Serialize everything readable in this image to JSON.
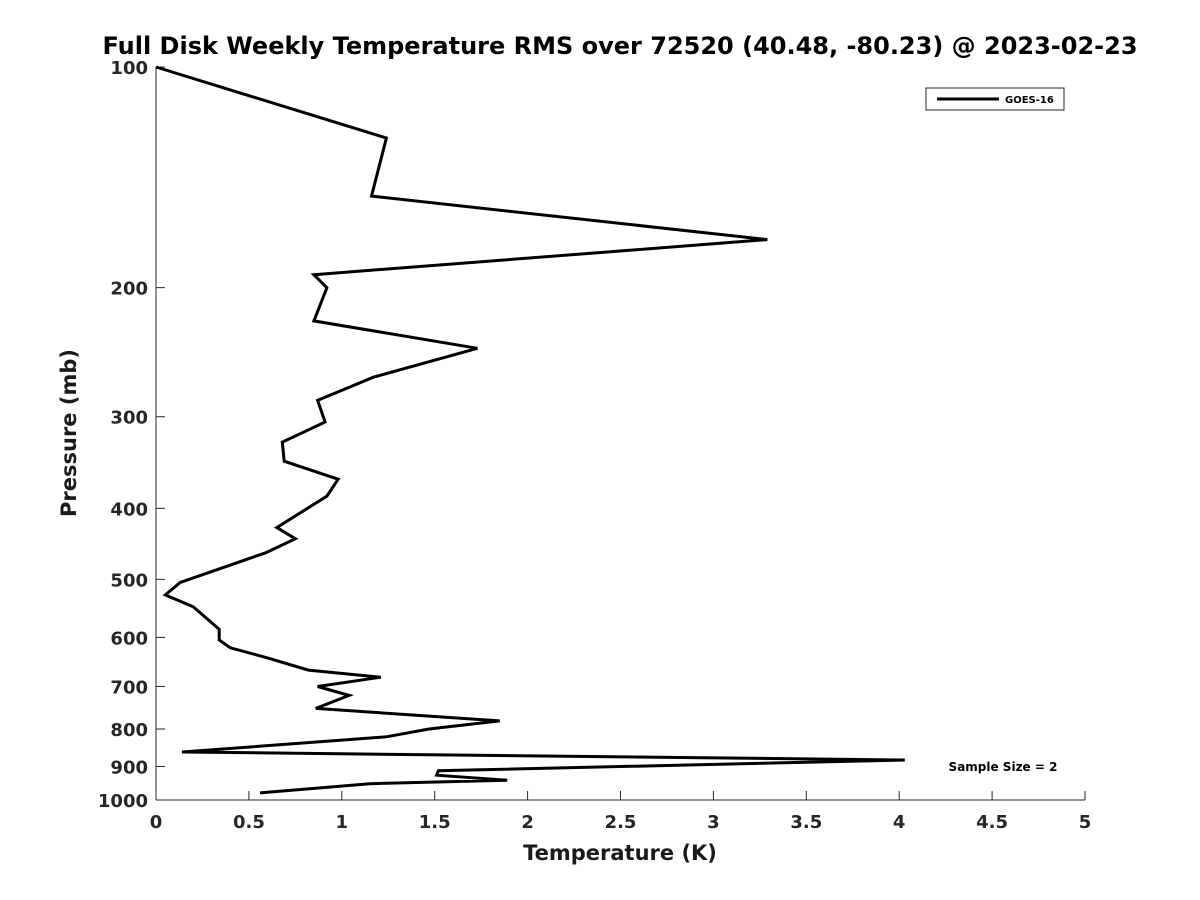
{
  "chart_data": {
    "type": "line",
    "title": "Full Disk Weekly Temperature RMS over 72520 (40.48, -80.23) @ 2023-02-23",
    "xlabel": "Temperature (K)",
    "ylabel": "Pressure (mb)",
    "xlim": [
      0,
      5
    ],
    "ylim": [
      100,
      1000
    ],
    "y_scale": "log",
    "y_reversed": true,
    "grid": false,
    "legend_position": "top-right",
    "x_ticks": [
      "0",
      "0.5",
      "1",
      "1.5",
      "2",
      "2.5",
      "3",
      "3.5",
      "4",
      "4.5",
      "5"
    ],
    "y_ticks": [
      "100",
      "200",
      "300",
      "400",
      "500",
      "600",
      "700",
      "800",
      "900",
      "1000"
    ],
    "annotation": "Sample Size = 2",
    "series": [
      {
        "name": "GOES-16",
        "color": "#000000",
        "points": [
          {
            "x": 0.0,
            "p": 100
          },
          {
            "x": 1.24,
            "p": 125
          },
          {
            "x": 1.16,
            "p": 150
          },
          {
            "x": 3.29,
            "p": 172
          },
          {
            "x": 0.85,
            "p": 192
          },
          {
            "x": 0.92,
            "p": 200
          },
          {
            "x": 0.85,
            "p": 222
          },
          {
            "x": 1.73,
            "p": 242
          },
          {
            "x": 1.17,
            "p": 265
          },
          {
            "x": 0.87,
            "p": 285
          },
          {
            "x": 0.91,
            "p": 305
          },
          {
            "x": 0.68,
            "p": 325
          },
          {
            "x": 0.69,
            "p": 345
          },
          {
            "x": 0.98,
            "p": 365
          },
          {
            "x": 0.92,
            "p": 385
          },
          {
            "x": 0.65,
            "p": 425
          },
          {
            "x": 0.75,
            "p": 440
          },
          {
            "x": 0.59,
            "p": 460
          },
          {
            "x": 0.13,
            "p": 505
          },
          {
            "x": 0.05,
            "p": 525
          },
          {
            "x": 0.2,
            "p": 545
          },
          {
            "x": 0.34,
            "p": 585
          },
          {
            "x": 0.34,
            "p": 605
          },
          {
            "x": 0.4,
            "p": 620
          },
          {
            "x": 0.6,
            "p": 640
          },
          {
            "x": 0.82,
            "p": 665
          },
          {
            "x": 1.21,
            "p": 680
          },
          {
            "x": 0.87,
            "p": 700
          },
          {
            "x": 1.04,
            "p": 720
          },
          {
            "x": 0.86,
            "p": 750
          },
          {
            "x": 1.85,
            "p": 780
          },
          {
            "x": 1.47,
            "p": 800
          },
          {
            "x": 1.24,
            "p": 820
          },
          {
            "x": 0.14,
            "p": 860
          },
          {
            "x": 4.03,
            "p": 882
          },
          {
            "x": 1.52,
            "p": 912
          },
          {
            "x": 1.51,
            "p": 925
          },
          {
            "x": 1.89,
            "p": 940
          },
          {
            "x": 1.15,
            "p": 950
          },
          {
            "x": 0.56,
            "p": 978
          }
        ]
      }
    ]
  }
}
